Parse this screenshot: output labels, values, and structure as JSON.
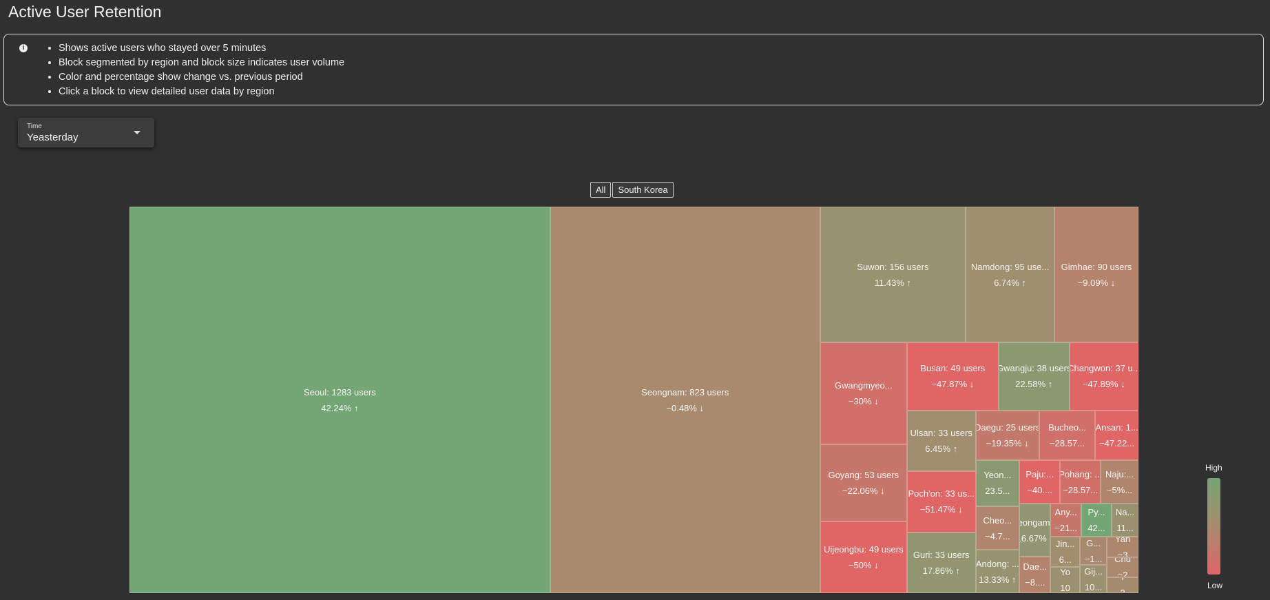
{
  "header": {
    "title": "Active User Retention"
  },
  "info": {
    "items": [
      "Shows active users who stayed over 5 minutes",
      "Block segmented by region and block size indicates user volume",
      "Color and percentage show change vs. previous period",
      "Click a block to view detailed user data by region"
    ]
  },
  "time_select": {
    "label": "Time",
    "value": "Yeasterday"
  },
  "breadcrumb": [
    "All",
    "South Korea"
  ],
  "chart_data": {
    "type": "treemap",
    "labels": [
      "Seoul: 1283 users",
      "Seongnam: 823 users",
      "Suwon: 156 users",
      "Namdong: 95 use...",
      "Gimhae: 90 users",
      "Gwangmyeo...",
      "Goyang: 53 users",
      "Uijeongbu: 49 users",
      "Busan: 49 users",
      "Gwangju: 38 users",
      "Changwon: 37 u...",
      "Ulsan: 33 users",
      "Poch'on: 33 us...",
      "Guri: 33 users",
      "Daegu: 25 users",
      "Bucheo...",
      "Ansan: 1...",
      "Yeon...",
      "Cheo...",
      "Andong: ...",
      "Paju:...",
      "Pohang: ...",
      "Naju:...",
      "Yeongam...",
      "Dae...",
      "Any...",
      "Py...",
      "Na...",
      "Jin...",
      "Yo",
      "G...",
      "Gij...",
      "Yan",
      "Chu",
      "Y"
    ],
    "values": [
      1283,
      823,
      156,
      95,
      90,
      70,
      53,
      49,
      49,
      38,
      37,
      33,
      33,
      33,
      25,
      22,
      17,
      16,
      15,
      15,
      14,
      14,
      13,
      13,
      9,
      8,
      8,
      7,
      7,
      6,
      6,
      6,
      5,
      5,
      4
    ],
    "changes": [
      42.24,
      -0.48,
      11.43,
      6.74,
      -9.09,
      -30,
      -22.06,
      -50,
      -47.87,
      22.58,
      -47.89,
      6.45,
      -51.47,
      17.86,
      -19.35,
      -28.57,
      -47.22,
      23.5,
      -4.7,
      13.33,
      -40,
      -28.57,
      -5,
      16.67,
      -8,
      -21,
      42,
      11,
      6,
      10,
      -1,
      10,
      -3,
      -2,
      2
    ],
    "change_labels": [
      "42.24% ↑",
      "−0.48% ↓",
      "11.43% ↑",
      "6.74% ↑",
      "−9.09% ↓",
      "−30% ↓",
      "−22.06% ↓",
      "−50% ↓",
      "−47.87% ↓",
      "22.58% ↑",
      "−47.89% ↓",
      "6.45% ↑",
      "−51.47% ↓",
      "17.86% ↑",
      "−19.35% ↓",
      "−28.57...",
      "−47.22...",
      "23.5...",
      "−4.7...",
      "13.33% ↑",
      "−40....",
      "−28.57...",
      "−5%...",
      "16.67% ↑",
      "−8....",
      "−21...",
      "42...",
      "11...",
      "6...",
      "10",
      "−1...",
      "10...",
      "−3",
      "−2",
      "2"
    ],
    "colors": {
      "high": "#74a574",
      "mid": "#a88a6e",
      "low": "#e06666"
    },
    "legend": {
      "high": "High",
      "low": "Low"
    }
  }
}
